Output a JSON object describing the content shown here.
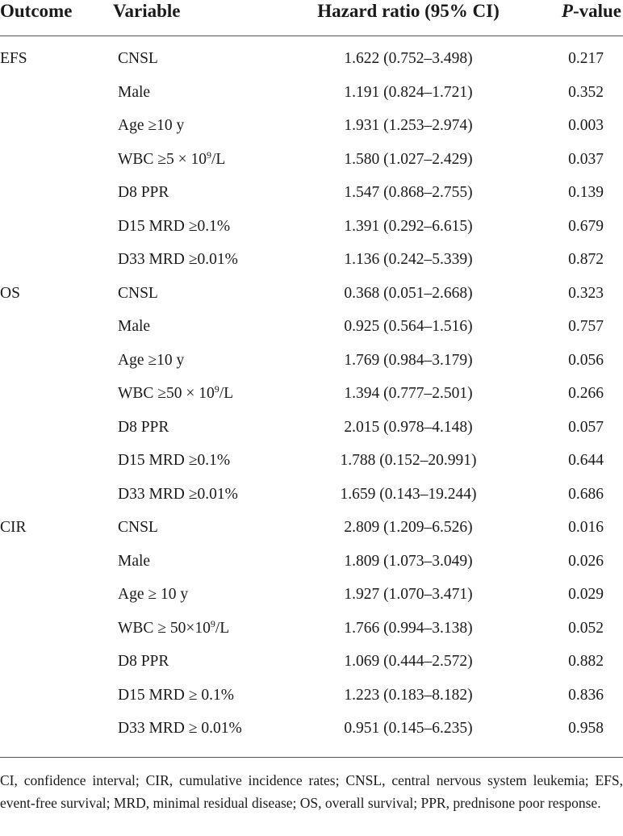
{
  "table": {
    "headers": {
      "outcome": "Outcome",
      "variable": "Variable",
      "hazard_ratio": "Hazard ratio (95% CI)",
      "p_value_italic": "P",
      "p_value_rest": "-value"
    },
    "rows": [
      {
        "outcome": "EFS",
        "variable": "CNSL",
        "hr": "1.622 (0.752–3.498)",
        "p": "0.217"
      },
      {
        "outcome": "",
        "variable": "Male",
        "hr": "1.191 (0.824–1.721)",
        "p": "0.352"
      },
      {
        "outcome": "",
        "variable": "Age ≥10 y",
        "hr": "1.931 (1.253–2.974)",
        "p": "0.003"
      },
      {
        "outcome": "",
        "variable_pre": "WBC ≥5 × 10",
        "variable_sup": "9",
        "variable_post": "/L",
        "hr": "1.580 (1.027–2.429)",
        "p": "0.037"
      },
      {
        "outcome": "",
        "variable": "D8 PPR",
        "hr": "1.547 (0.868–2.755)",
        "p": "0.139"
      },
      {
        "outcome": "",
        "variable": "D15 MRD ≥0.1%",
        "hr": "1.391 (0.292–6.615)",
        "p": "0.679"
      },
      {
        "outcome": "",
        "variable": "D33 MRD ≥0.01%",
        "hr": "1.136 (0.242–5.339)",
        "p": "0.872"
      },
      {
        "outcome": "OS",
        "variable": "CNSL",
        "hr": "0.368 (0.051–2.668)",
        "p": "0.323"
      },
      {
        "outcome": "",
        "variable": "Male",
        "hr": "0.925 (0.564–1.516)",
        "p": "0.757"
      },
      {
        "outcome": "",
        "variable": "Age ≥10 y",
        "hr": "1.769 (0.984–3.179)",
        "p": "0.056"
      },
      {
        "outcome": "",
        "variable_pre": "WBC ≥50 × 10",
        "variable_sup": "9",
        "variable_post": "/L",
        "hr": "1.394 (0.777–2.501)",
        "p": "0.266"
      },
      {
        "outcome": "",
        "variable": "D8 PPR",
        "hr": "2.015 (0.978–4.148)",
        "p": "0.057"
      },
      {
        "outcome": "",
        "variable": "D15 MRD ≥0.1%",
        "hr": "1.788 (0.152–20.991)",
        "p": "0.644"
      },
      {
        "outcome": "",
        "variable": "D33 MRD ≥0.01%",
        "hr": "1.659 (0.143–19.244)",
        "p": "0.686"
      },
      {
        "outcome": "CIR",
        "variable": "CNSL",
        "hr": "2.809 (1.209–6.526)",
        "p": "0.016"
      },
      {
        "outcome": "",
        "variable": "Male",
        "hr": "1.809 (1.073–3.049)",
        "p": "0.026"
      },
      {
        "outcome": "",
        "variable": "Age ≥ 10 y",
        "hr": "1.927 (1.070–3.471)",
        "p": "0.029"
      },
      {
        "outcome": "",
        "variable_pre": "WBC ≥ 50×10",
        "variable_sup": "9",
        "variable_post": "/L",
        "hr": "1.766 (0.994–3.138)",
        "p": "0.052"
      },
      {
        "outcome": "",
        "variable": "D8 PPR",
        "hr": "1.069 (0.444–2.572)",
        "p": "0.882"
      },
      {
        "outcome": "",
        "variable": "D15 MRD ≥ 0.1%",
        "hr": "1.223 (0.183–8.182)",
        "p": "0.836"
      },
      {
        "outcome": "",
        "variable": "D33 MRD ≥ 0.01%",
        "hr": "0.951 (0.145–6.235)",
        "p": "0.958"
      }
    ]
  },
  "footnote": "CI, confidence interval; CIR, cumulative incidence rates; CNSL, central nervous system leukemia; EFS, event-free survival; MRD, minimal residual disease; OS, overall survival; PPR, prednisone poor response."
}
